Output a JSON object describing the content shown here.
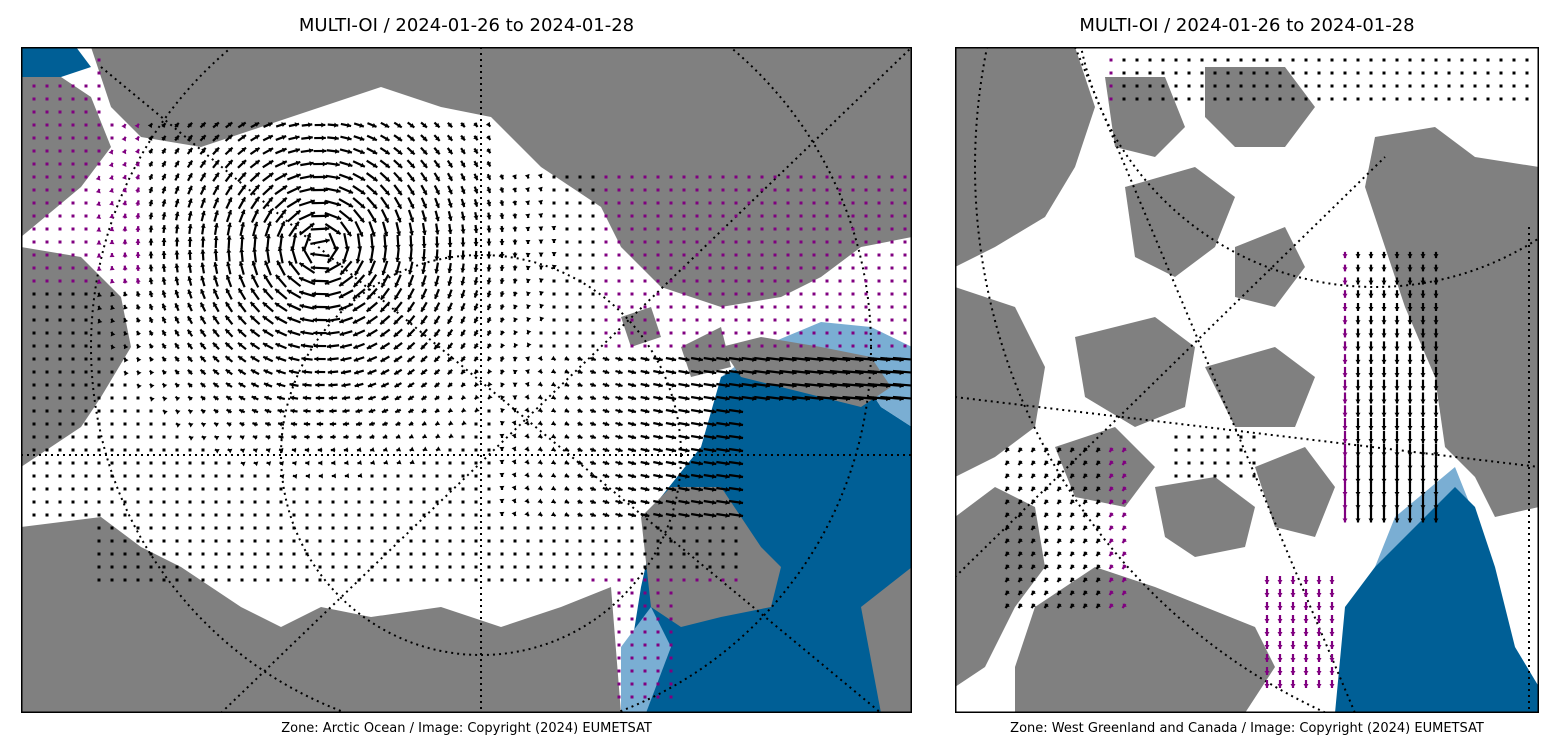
{
  "panels": [
    {
      "title": "MULTI-OI / 2024-01-26 to 2024-01-28",
      "caption": "Zone: Arctic Ocean / Image: Copyright (2024) EUMETSAT"
    },
    {
      "title": "MULTI-OI / 2024-01-26 to 2024-01-28",
      "caption": "Zone: West Greenland and Canada / Image: Copyright (2024) EUMETSAT"
    }
  ],
  "colors": {
    "land": "#808080",
    "ice": "#ffffff",
    "open_water": "#005f96",
    "ice_edge": "#7aaed3",
    "vector": "#000000",
    "vector_flagged": "#800080",
    "graticule": "#000000"
  }
}
